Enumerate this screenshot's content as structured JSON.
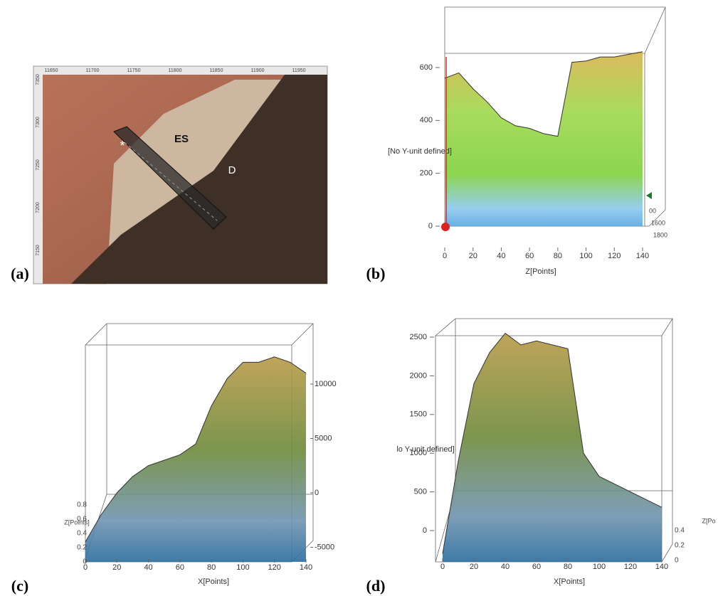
{
  "panels": [
    {
      "label": "(a)",
      "top_ticks": [
        11650,
        11700,
        11750,
        11800,
        11850,
        11900,
        11950
      ],
      "left_ticks": [
        7350,
        7300,
        7250,
        7200,
        7150
      ],
      "annotations": [
        "ES",
        "D",
        "*"
      ]
    },
    {
      "label": "(b)",
      "y_label": "[No Y-unit defined]",
      "x_label": "Z[Points]",
      "y_ticks": [
        0,
        200,
        400,
        600
      ],
      "x_ticks": [
        0,
        20,
        40,
        60,
        80,
        100,
        120,
        140
      ],
      "depth_ticks": [
        "00",
        "1600",
        "1800"
      ],
      "surface": [
        560,
        580,
        520,
        470,
        410,
        380,
        370,
        350,
        340,
        620,
        625,
        640,
        640,
        650,
        660
      ]
    },
    {
      "label": "(c)",
      "x_label": "X[Points]",
      "z_label": "Z[Points]",
      "y_ticks": [
        -5000,
        0,
        5000,
        10000
      ],
      "x_ticks": [
        0,
        20,
        40,
        60,
        80,
        100,
        120,
        140
      ],
      "z_ticks": [
        0.0,
        0.2,
        0.4,
        0.6,
        0.8
      ],
      "surface": [
        -4500,
        -2000,
        0,
        1500,
        2500,
        3000,
        3500,
        4500,
        8000,
        10500,
        12000,
        12000,
        12500,
        12000,
        11000
      ]
    },
    {
      "label": "(d)",
      "y_label": "lo Y-unit defined]",
      "x_label": "X[Points]",
      "z_label": "Z[Po",
      "y_ticks": [
        0,
        500,
        1000,
        1500,
        2000,
        2500
      ],
      "x_ticks": [
        0,
        20,
        40,
        60,
        80,
        100,
        120,
        140
      ],
      "z_ticks": [
        0.0,
        0.2,
        0.4
      ],
      "surface": [
        -300,
        900,
        1900,
        2300,
        2550,
        2400,
        2450,
        2400,
        2350,
        1000,
        700,
        600,
        500,
        400,
        300
      ]
    }
  ]
}
